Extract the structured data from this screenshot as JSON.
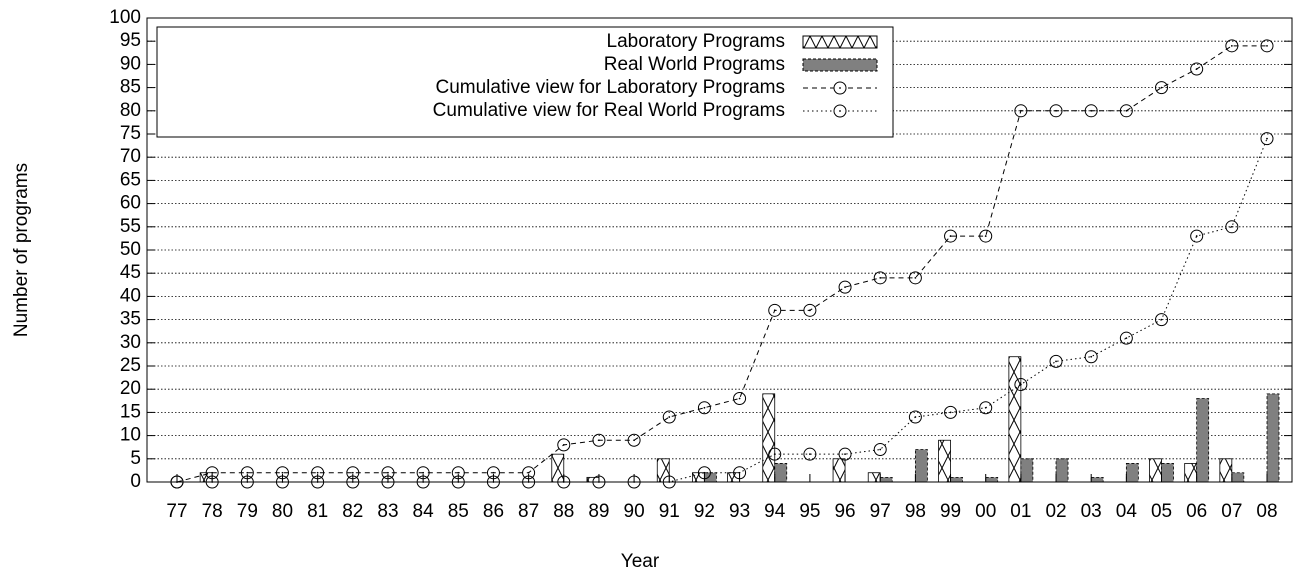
{
  "chart_data": {
    "type": "bar",
    "xlabel": "Year",
    "ylabel": "Number of programs",
    "categories": [
      "77",
      "78",
      "79",
      "80",
      "81",
      "82",
      "83",
      "84",
      "85",
      "86",
      "87",
      "88",
      "89",
      "90",
      "91",
      "92",
      "93",
      "94",
      "95",
      "96",
      "97",
      "98",
      "99",
      "00",
      "01",
      "02",
      "03",
      "04",
      "05",
      "06",
      "07",
      "08"
    ],
    "series": [
      {
        "name": "Laboratory Programs",
        "type": "bar",
        "color": "#ffffff",
        "pattern": "crosshatch",
        "values": [
          0,
          2,
          0,
          0,
          0,
          0,
          0,
          0,
          0,
          0,
          0,
          6,
          1,
          0,
          5,
          2,
          2,
          19,
          0,
          5,
          2,
          0,
          9,
          0,
          27,
          0,
          0,
          0,
          5,
          4,
          5,
          0
        ]
      },
      {
        "name": "Real World Programs",
        "type": "bar",
        "color": "#808080",
        "values": [
          0,
          0,
          0,
          0,
          0,
          0,
          0,
          0,
          0,
          0,
          0,
          0,
          0,
          0,
          0,
          2,
          0,
          4,
          0,
          0,
          1,
          7,
          1,
          1,
          5,
          5,
          1,
          4,
          4,
          18,
          2,
          19
        ]
      },
      {
        "name": "Cumulative view for Laboratory Programs",
        "type": "line",
        "color": "#000000",
        "dash": "dashed",
        "values": [
          0,
          2,
          2,
          2,
          2,
          2,
          2,
          2,
          2,
          2,
          2,
          8,
          9,
          9,
          14,
          16,
          18,
          37,
          37,
          42,
          44,
          44,
          53,
          53,
          80,
          80,
          80,
          80,
          85,
          89,
          94,
          94
        ]
      },
      {
        "name": "Cumulative view for Real World Programs",
        "type": "line",
        "color": "#000000",
        "dash": "dotted",
        "values": [
          0,
          0,
          0,
          0,
          0,
          0,
          0,
          0,
          0,
          0,
          0,
          0,
          0,
          0,
          0,
          2,
          2,
          6,
          6,
          6,
          7,
          14,
          15,
          16,
          21,
          26,
          27,
          31,
          35,
          53,
          55,
          74
        ]
      }
    ],
    "ylim": [
      0,
      100
    ],
    "yticks": [
      0,
      5,
      10,
      15,
      20,
      25,
      30,
      35,
      40,
      45,
      50,
      55,
      60,
      65,
      70,
      75,
      80,
      85,
      90,
      95,
      100
    ],
    "grid": true,
    "legend": "top-left"
  }
}
